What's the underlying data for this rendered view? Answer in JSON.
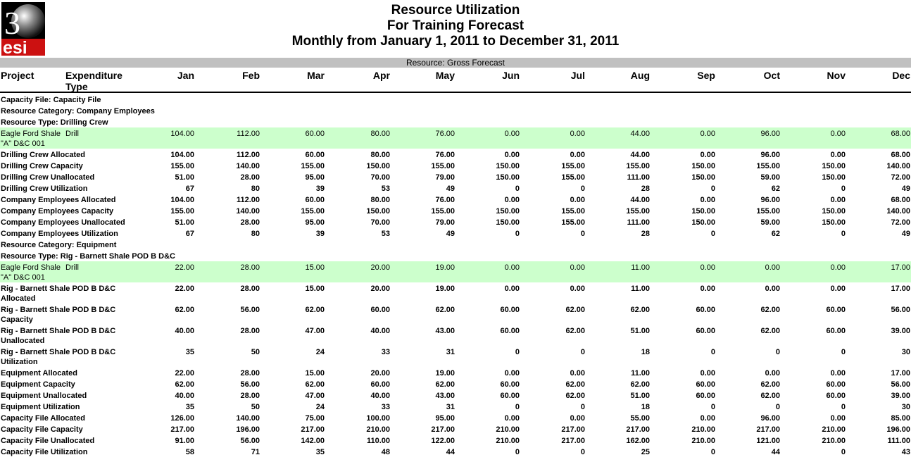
{
  "logo": {
    "text_top": "3",
    "text_bottom": "esi"
  },
  "header": {
    "title": "Resource Utilization",
    "subtitle": "For Training Forecast",
    "range": "Monthly from January 1, 2011 to December 31, 2011"
  },
  "resource_bar": "Resource: Gross Forecast",
  "columns": {
    "project": "Project",
    "expenditure_1": "Expenditure",
    "expenditure_2": "Type",
    "months": [
      "Jan",
      "Feb",
      "Mar",
      "Apr",
      "May",
      "Jun",
      "Jul",
      "Aug",
      "Sep",
      "Oct",
      "Nov",
      "Dec"
    ]
  },
  "rows": [
    {
      "type": "section",
      "label": "Capacity File: Capacity File"
    },
    {
      "type": "section",
      "label": "Resource Category: Company Employees"
    },
    {
      "type": "section",
      "label": "Resource Type: Drilling Crew"
    },
    {
      "type": "detail",
      "label": "Eagle Ford Shale",
      "label_line2": "\"A\" D&C 001",
      "exp": "Drill",
      "values": [
        "104.00",
        "112.00",
        "60.00",
        "80.00",
        "76.00",
        "0.00",
        "0.00",
        "44.00",
        "0.00",
        "96.00",
        "0.00",
        "68.00"
      ]
    },
    {
      "type": "data",
      "label": "Drilling Crew Allocated",
      "values": [
        "104.00",
        "112.00",
        "60.00",
        "80.00",
        "76.00",
        "0.00",
        "0.00",
        "44.00",
        "0.00",
        "96.00",
        "0.00",
        "68.00"
      ]
    },
    {
      "type": "data",
      "label": "Drilling Crew Capacity",
      "values": [
        "155.00",
        "140.00",
        "155.00",
        "150.00",
        "155.00",
        "150.00",
        "155.00",
        "155.00",
        "150.00",
        "155.00",
        "150.00",
        "140.00"
      ]
    },
    {
      "type": "data",
      "label": "Drilling Crew Unallocated",
      "values": [
        "51.00",
        "28.00",
        "95.00",
        "70.00",
        "79.00",
        "150.00",
        "155.00",
        "111.00",
        "150.00",
        "59.00",
        "150.00",
        "72.00"
      ]
    },
    {
      "type": "data",
      "label": "Drilling Crew Utilization",
      "values": [
        "67",
        "80",
        "39",
        "53",
        "49",
        "0",
        "0",
        "28",
        "0",
        "62",
        "0",
        "49"
      ]
    },
    {
      "type": "data",
      "label": "Company Employees Allocated",
      "values": [
        "104.00",
        "112.00",
        "60.00",
        "80.00",
        "76.00",
        "0.00",
        "0.00",
        "44.00",
        "0.00",
        "96.00",
        "0.00",
        "68.00"
      ]
    },
    {
      "type": "data",
      "label": "Company Employees Capacity",
      "values": [
        "155.00",
        "140.00",
        "155.00",
        "150.00",
        "155.00",
        "150.00",
        "155.00",
        "155.00",
        "150.00",
        "155.00",
        "150.00",
        "140.00"
      ]
    },
    {
      "type": "data",
      "label": "Company Employees Unallocated",
      "values": [
        "51.00",
        "28.00",
        "95.00",
        "70.00",
        "79.00",
        "150.00",
        "155.00",
        "111.00",
        "150.00",
        "59.00",
        "150.00",
        "72.00"
      ]
    },
    {
      "type": "data",
      "label": "Company Employees Utilization",
      "values": [
        "67",
        "80",
        "39",
        "53",
        "49",
        "0",
        "0",
        "28",
        "0",
        "62",
        "0",
        "49"
      ]
    },
    {
      "type": "section",
      "label": "Resource Category: Equipment"
    },
    {
      "type": "section",
      "label": "Resource Type: Rig - Barnett Shale POD B D&C"
    },
    {
      "type": "detail",
      "label": "Eagle Ford Shale",
      "label_line2": "\"A\" D&C 001",
      "exp": "Drill",
      "values": [
        "22.00",
        "28.00",
        "15.00",
        "20.00",
        "19.00",
        "0.00",
        "0.00",
        "11.00",
        "0.00",
        "0.00",
        "0.00",
        "17.00"
      ]
    },
    {
      "type": "data2",
      "label": "Rig - Barnett Shale POD B D&C",
      "label_line2": "Allocated",
      "values": [
        "22.00",
        "28.00",
        "15.00",
        "20.00",
        "19.00",
        "0.00",
        "0.00",
        "11.00",
        "0.00",
        "0.00",
        "0.00",
        "17.00"
      ]
    },
    {
      "type": "data2",
      "label": "Rig - Barnett Shale POD B D&C",
      "label_line2": "Capacity",
      "values": [
        "62.00",
        "56.00",
        "62.00",
        "60.00",
        "62.00",
        "60.00",
        "62.00",
        "62.00",
        "60.00",
        "62.00",
        "60.00",
        "56.00"
      ]
    },
    {
      "type": "data2",
      "label": "Rig - Barnett Shale POD B D&C",
      "label_line2": "Unallocated",
      "values": [
        "40.00",
        "28.00",
        "47.00",
        "40.00",
        "43.00",
        "60.00",
        "62.00",
        "51.00",
        "60.00",
        "62.00",
        "60.00",
        "39.00"
      ]
    },
    {
      "type": "data2",
      "label": "Rig - Barnett Shale POD B D&C",
      "label_line2": "Utilization",
      "values": [
        "35",
        "50",
        "24",
        "33",
        "31",
        "0",
        "0",
        "18",
        "0",
        "0",
        "0",
        "30"
      ]
    },
    {
      "type": "data",
      "label": "Equipment Allocated",
      "values": [
        "22.00",
        "28.00",
        "15.00",
        "20.00",
        "19.00",
        "0.00",
        "0.00",
        "11.00",
        "0.00",
        "0.00",
        "0.00",
        "17.00"
      ]
    },
    {
      "type": "data",
      "label": "Equipment Capacity",
      "values": [
        "62.00",
        "56.00",
        "62.00",
        "60.00",
        "62.00",
        "60.00",
        "62.00",
        "62.00",
        "60.00",
        "62.00",
        "60.00",
        "56.00"
      ]
    },
    {
      "type": "data",
      "label": "Equipment Unallocated",
      "values": [
        "40.00",
        "28.00",
        "47.00",
        "40.00",
        "43.00",
        "60.00",
        "62.00",
        "51.00",
        "60.00",
        "62.00",
        "60.00",
        "39.00"
      ]
    },
    {
      "type": "data",
      "label": "Equipment Utilization",
      "values": [
        "35",
        "50",
        "24",
        "33",
        "31",
        "0",
        "0",
        "18",
        "0",
        "0",
        "0",
        "30"
      ]
    },
    {
      "type": "data",
      "label": "Capacity File Allocated",
      "values": [
        "126.00",
        "140.00",
        "75.00",
        "100.00",
        "95.00",
        "0.00",
        "0.00",
        "55.00",
        "0.00",
        "96.00",
        "0.00",
        "85.00"
      ]
    },
    {
      "type": "data",
      "label": "Capacity File Capacity",
      "values": [
        "217.00",
        "196.00",
        "217.00",
        "210.00",
        "217.00",
        "210.00",
        "217.00",
        "217.00",
        "210.00",
        "217.00",
        "210.00",
        "196.00"
      ]
    },
    {
      "type": "data",
      "label": "Capacity File Unallocated",
      "values": [
        "91.00",
        "56.00",
        "142.00",
        "110.00",
        "122.00",
        "210.00",
        "217.00",
        "162.00",
        "210.00",
        "121.00",
        "210.00",
        "111.00"
      ]
    },
    {
      "type": "data",
      "label": "Capacity File Utilization",
      "values": [
        "58",
        "71",
        "35",
        "48",
        "44",
        "0",
        "0",
        "25",
        "0",
        "44",
        "0",
        "43"
      ]
    }
  ]
}
